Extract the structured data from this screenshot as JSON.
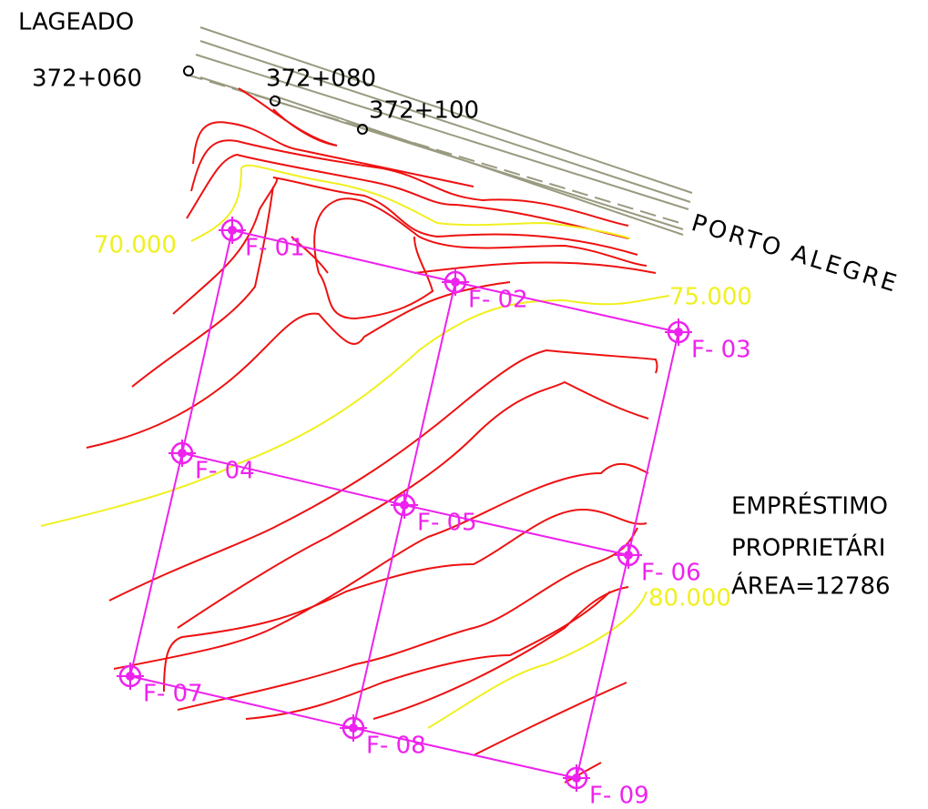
{
  "road": {
    "origin": "LAGEADO",
    "destination": "PORTO ALEGRE",
    "stations": [
      "372+060",
      "372+080",
      "372+100"
    ]
  },
  "contours": [
    "70.000",
    "75.000",
    "80.000"
  ],
  "boreholes": [
    "F- 01",
    "F- 02",
    "F- 03",
    "F- 04",
    "F- 05",
    "F- 06",
    "F- 07",
    "F- 08",
    "F- 09"
  ],
  "note": [
    "EMPRÉSTIMO",
    "PROPRIETÁRI",
    "ÁREA=12786"
  ]
}
